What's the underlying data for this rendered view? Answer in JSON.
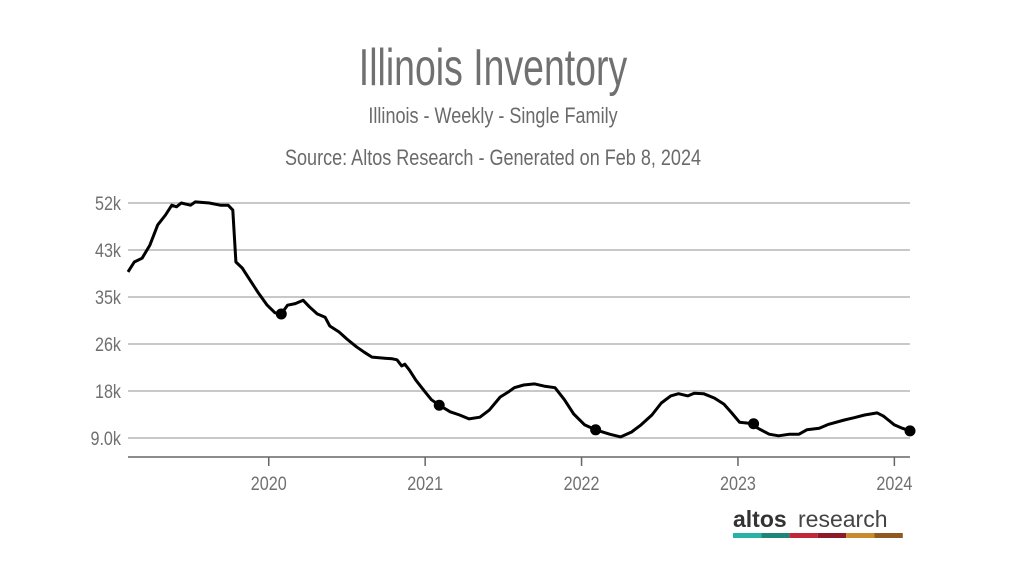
{
  "chart_data": {
    "type": "line",
    "title": "Illinois Inventory",
    "subtitle": "Illinois - Weekly - Single Family",
    "source": "Source: Altos Research - Generated on Feb 8, 2024",
    "xlabel": "",
    "ylabel": "",
    "xlim": [
      2019.1,
      2024.1
    ],
    "ylim": [
      9000,
      52000
    ],
    "grid": true,
    "y_ticks": [
      {
        "value": 9000,
        "label": "9.0k"
      },
      {
        "value": 17600,
        "label": "18k"
      },
      {
        "value": 26200,
        "label": "26k"
      },
      {
        "value": 34800,
        "label": "35k"
      },
      {
        "value": 43400,
        "label": "43k"
      },
      {
        "value": 52000,
        "label": "52k"
      }
    ],
    "x_ticks": [
      {
        "value": 2020.0,
        "label": "2020"
      },
      {
        "value": 2021.0,
        "label": "2021"
      },
      {
        "value": 2022.0,
        "label": "2022"
      },
      {
        "value": 2023.0,
        "label": "2023"
      },
      {
        "value": 2024.0,
        "label": "2024"
      }
    ],
    "series": [
      {
        "name": "Inventory",
        "color": "#000000",
        "x": [
          2019.1,
          2019.14,
          2019.19,
          2019.24,
          2019.29,
          2019.34,
          2019.38,
          2019.41,
          2019.44,
          2019.5,
          2019.53,
          2019.62,
          2019.69,
          2019.74,
          2019.77,
          2019.79,
          2019.83,
          2019.88,
          2019.93,
          2019.99,
          2020.04,
          2020.08,
          2020.12,
          2020.17,
          2020.22,
          2020.26,
          2020.31,
          2020.36,
          2020.39,
          2020.45,
          2020.5,
          2020.56,
          2020.61,
          2020.66,
          2020.74,
          2020.79,
          2020.82,
          2020.85,
          2020.87,
          2020.9,
          2020.94,
          2021.0,
          2021.04,
          2021.09,
          2021.16,
          2021.22,
          2021.28,
          2021.35,
          2021.41,
          2021.48,
          2021.53,
          2021.57,
          2021.63,
          2021.7,
          2021.76,
          2021.83,
          2021.89,
          2021.95,
          2022.02,
          2022.09,
          2022.18,
          2022.25,
          2022.32,
          2022.38,
          2022.45,
          2022.51,
          2022.57,
          2022.62,
          2022.68,
          2022.72,
          2022.78,
          2022.85,
          2022.91,
          2022.96,
          2023.01,
          2023.07,
          2023.14,
          2023.2,
          2023.26,
          2023.33,
          2023.39,
          2023.44,
          2023.52,
          2023.58,
          2023.68,
          2023.74,
          2023.81,
          2023.89,
          2023.93,
          2024.0,
          2024.05,
          2024.1
        ],
        "y": [
          39400,
          41200,
          41900,
          44300,
          48000,
          49800,
          51600,
          51300,
          52000,
          51600,
          52200,
          52000,
          51600,
          51600,
          50700,
          41200,
          40100,
          37900,
          35700,
          33300,
          31900,
          31700,
          33300,
          33600,
          34200,
          33000,
          31700,
          31100,
          29500,
          28400,
          27100,
          25700,
          24700,
          23800,
          23600,
          23500,
          23300,
          22200,
          22500,
          21400,
          19600,
          17400,
          16000,
          15000,
          13800,
          13200,
          12500,
          12800,
          14100,
          16500,
          17400,
          18200,
          18700,
          18900,
          18500,
          18200,
          16000,
          13400,
          11400,
          10500,
          9700,
          9200,
          10100,
          11400,
          13200,
          15400,
          16700,
          17100,
          16700,
          17200,
          17100,
          16300,
          15200,
          13600,
          11900,
          11700,
          10600,
          9700,
          9400,
          9700,
          9700,
          10500,
          10800,
          11500,
          12300,
          12700,
          13200,
          13600,
          13000,
          11400,
          10800,
          10300
        ]
      }
    ],
    "markers": [
      {
        "x": 2020.08,
        "y": 31700
      },
      {
        "x": 2021.09,
        "y": 15000
      },
      {
        "x": 2022.09,
        "y": 10500
      },
      {
        "x": 2023.1,
        "y": 11600
      },
      {
        "x": 2024.1,
        "y": 10300
      }
    ]
  },
  "logo": {
    "bold": "altos",
    "light": "research",
    "bar_colors": [
      "#26b3a5",
      "#1f8577",
      "#c0283a",
      "#8d1a2a",
      "#c98a2e",
      "#8f5a22"
    ]
  }
}
